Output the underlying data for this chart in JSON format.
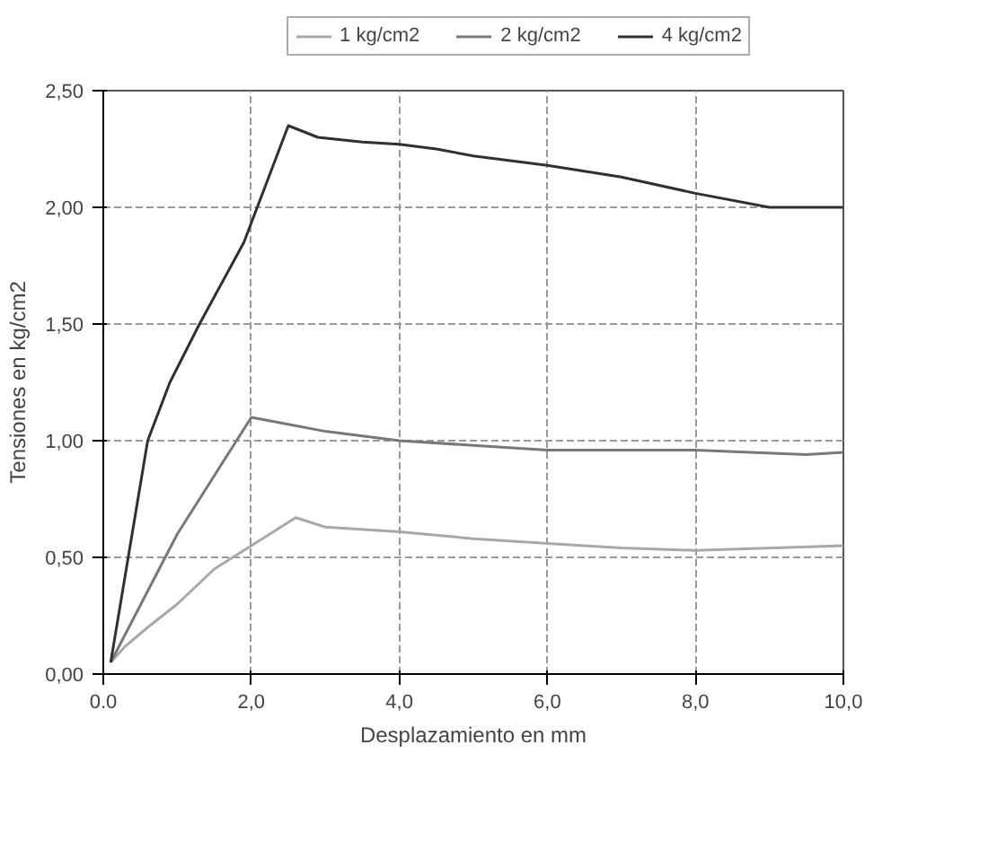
{
  "chart_data": {
    "type": "line",
    "xlabel": "Desplazamiento en mm",
    "ylabel": "Tensiones en kg/cm2",
    "xlim": [
      0,
      10
    ],
    "ylim": [
      0,
      2.5
    ],
    "xticks": [
      {
        "value": 0,
        "label": "0.0"
      },
      {
        "value": 2,
        "label": "2,0"
      },
      {
        "value": 4,
        "label": "4,0"
      },
      {
        "value": 6,
        "label": "6,0"
      },
      {
        "value": 8,
        "label": "8,0"
      },
      {
        "value": 10,
        "label": "10,0"
      }
    ],
    "yticks": [
      {
        "value": 0,
        "label": "0,00"
      },
      {
        "value": 0.5,
        "label": "0,50"
      },
      {
        "value": 1,
        "label": "1,00"
      },
      {
        "value": 1.5,
        "label": "1,50"
      },
      {
        "value": 2,
        "label": "2,00"
      },
      {
        "value": 2.5,
        "label": "2,50"
      }
    ],
    "grid": true,
    "legend": "top",
    "marker": "none",
    "line_style": "solid",
    "series": [
      {
        "name": "1 kg/cm2",
        "color": "#a8a8a8",
        "x": [
          0.1,
          0.3,
          0.6,
          1.0,
          1.5,
          2.0,
          2.6,
          3.0,
          4.0,
          5.0,
          6.0,
          7.0,
          8.0,
          10.0
        ],
        "values": [
          0.05,
          0.12,
          0.2,
          0.3,
          0.45,
          0.55,
          0.67,
          0.63,
          0.61,
          0.58,
          0.56,
          0.54,
          0.53,
          0.55
        ]
      },
      {
        "name": "2 kg/cm2",
        "color": "#787878",
        "x": [
          0.1,
          1.0,
          1.5,
          2.0,
          2.5,
          3.0,
          4.0,
          5.0,
          6.0,
          8.0,
          9.5,
          10.0
        ],
        "values": [
          0.05,
          0.6,
          0.85,
          1.1,
          1.07,
          1.04,
          1.0,
          0.98,
          0.96,
          0.96,
          0.94,
          0.95
        ]
      },
      {
        "name": "4 kg/cm2",
        "color": "#303030",
        "x": [
          0.1,
          0.6,
          0.9,
          1.3,
          1.9,
          2.5,
          2.9,
          3.5,
          4.0,
          4.5,
          5.0,
          6.0,
          7.0,
          8.0,
          9.0,
          10.0
        ],
        "values": [
          0.05,
          1.0,
          1.25,
          1.5,
          1.85,
          2.35,
          2.3,
          2.28,
          2.27,
          2.25,
          2.22,
          2.18,
          2.13,
          2.06,
          2.0,
          2.0
        ]
      }
    ]
  }
}
